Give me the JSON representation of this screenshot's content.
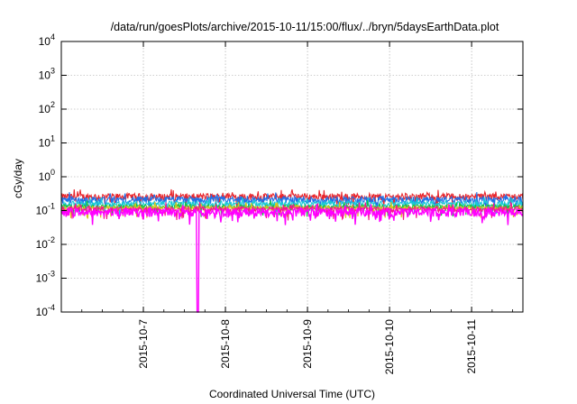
{
  "chart_data": {
    "type": "line",
    "title": "/data/run/goesPlots/archive/2015-10-11/15:00/flux/../bryn/5daysEarthData.plot",
    "xlabel": "Coordinated Universal Time (UTC)",
    "ylabel": "cGy/day",
    "yscale": "log",
    "ylim": [
      0.0001,
      10000
    ],
    "yticks": [
      {
        "base": "10",
        "exp": "-4"
      },
      {
        "base": "10",
        "exp": "-3"
      },
      {
        "base": "10",
        "exp": "-2"
      },
      {
        "base": "10",
        "exp": "-1"
      },
      {
        "base": "10",
        "exp": "0"
      },
      {
        "base": "10",
        "exp": "1"
      },
      {
        "base": "10",
        "exp": "2"
      },
      {
        "base": "10",
        "exp": "3"
      },
      {
        "base": "10",
        "exp": "4"
      }
    ],
    "xlim": [
      "2015-10-06T00:00",
      "2015-10-11T15:00"
    ],
    "xticks": [
      "2015-10-7",
      "2015-10-8",
      "2015-10-9",
      "2015-10-10",
      "2015-10-11"
    ],
    "grid": true,
    "legend": "none",
    "series": [
      {
        "color": "#e8242b",
        "baseline": 0.26,
        "noise": 0.06
      },
      {
        "color": "#1e6fe8",
        "baseline": 0.21,
        "noise": 0.05
      },
      {
        "color": "#19c8d8",
        "baseline": 0.16,
        "noise": 0.03
      },
      {
        "color": "#18c040",
        "baseline": 0.13,
        "noise": 0.02
      },
      {
        "color": "#d8c81a",
        "baseline": 0.12,
        "noise": 0.015
      },
      {
        "color": "#f5148c",
        "baseline": 0.11,
        "noise": 0.02
      },
      {
        "color": "#ff00ff",
        "baseline": 0.09,
        "noise": 0.025,
        "dip": {
          "x": "2015-10-07T16:00",
          "y": 0.0001
        }
      }
    ]
  }
}
